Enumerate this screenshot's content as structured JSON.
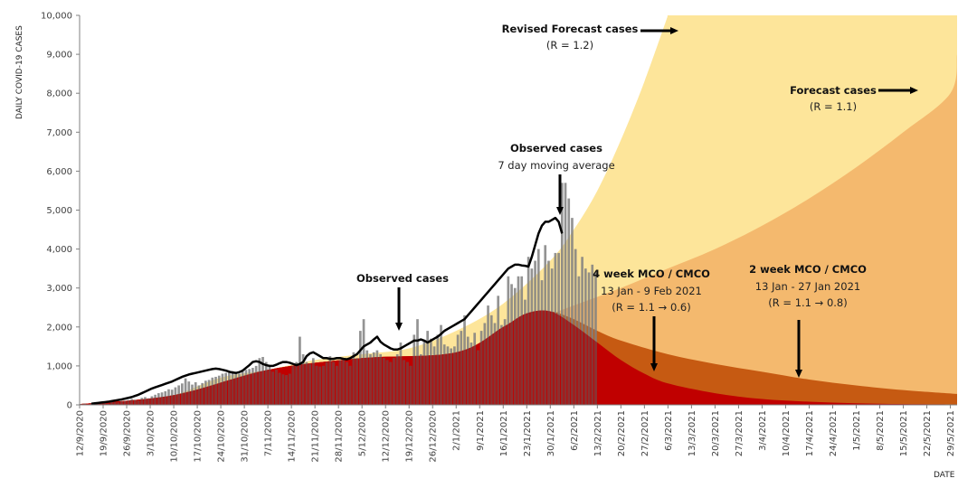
{
  "chart_data": {
    "type": "area",
    "title": "",
    "ylabel": "DAILY COVID-19 CASES",
    "xlabel": "DATE",
    "ylim": [
      0,
      10000
    ],
    "yticks": [
      0,
      1000,
      2000,
      3000,
      4000,
      5000,
      6000,
      7000,
      8000,
      9000,
      10000
    ],
    "ytick_labels": [
      "0",
      "1,000",
      "2,000",
      "3,000",
      "4,000",
      "5,000",
      "6,000",
      "7,000",
      "8,000",
      "9,000",
      "10,000"
    ],
    "x_start": "12/9/2020",
    "x_end": "31/5/2021",
    "xtick_labels": [
      "12/9/2020",
      "19/9/2020",
      "26/9/2020",
      "3/10/2020",
      "10/10/2020",
      "17/10/2020",
      "24/10/2020",
      "31/10/2020",
      "7/11/2020",
      "14/11/2020",
      "21/11/2020",
      "28/11/2020",
      "5/12/2020",
      "12/12/2020",
      "19/12/2020",
      "26/12/2020",
      "2/1/2021",
      "9/1/2021",
      "16/1/2021",
      "23/1/2021",
      "30/1/2021",
      "6/2/2021",
      "13/2/2021",
      "20/2/2021",
      "27/2/2021",
      "6/3/2021",
      "13/3/2021",
      "20/3/2021",
      "27/3/2021",
      "3/4/2021",
      "10/4/2021",
      "17/4/2021",
      "24/4/2021",
      "1/5/2021",
      "8/5/2021",
      "15/5/2021",
      "22/5/2021",
      "29/5/2021"
    ],
    "grid": false,
    "series": [
      {
        "name": "Revised Forecast cases (R = 1.2)",
        "kind": "area",
        "color": "#FDE59A",
        "points": [
          [
            0,
            20
          ],
          [
            14,
            80
          ],
          [
            28,
            250
          ],
          [
            42,
            700
          ],
          [
            56,
            900
          ],
          [
            70,
            1150
          ],
          [
            84,
            1300
          ],
          [
            98,
            1450
          ],
          [
            112,
            1900
          ],
          [
            126,
            2600
          ],
          [
            140,
            3700
          ],
          [
            147,
            4500
          ],
          [
            154,
            5500
          ],
          [
            161,
            6800
          ],
          [
            168,
            8300
          ],
          [
            175,
            10000
          ]
        ]
      },
      {
        "name": "Forecast cases (R = 1.1)",
        "kind": "area",
        "color": "#F4B96E",
        "points": [
          [
            133,
            2100
          ],
          [
            147,
            2550
          ],
          [
            161,
            3000
          ],
          [
            175,
            3500
          ],
          [
            189,
            4000
          ],
          [
            203,
            4600
          ],
          [
            217,
            5300
          ],
          [
            231,
            6100
          ],
          [
            245,
            7000
          ],
          [
            259,
            8000
          ],
          [
            261,
            9000
          ]
        ]
      },
      {
        "name": "2 week MCO / CMCO (R = 1.1 -> 0.8)",
        "kind": "area",
        "color": "#C65A12",
        "points": [
          [
            0,
            20
          ],
          [
            28,
            250
          ],
          [
            56,
            900
          ],
          [
            84,
            1200
          ],
          [
            112,
            1350
          ],
          [
            126,
            2000
          ],
          [
            133,
            2350
          ],
          [
            140,
            2400
          ],
          [
            147,
            2200
          ],
          [
            154,
            1900
          ],
          [
            161,
            1650
          ],
          [
            175,
            1300
          ],
          [
            189,
            1050
          ],
          [
            203,
            850
          ],
          [
            217,
            650
          ],
          [
            231,
            500
          ],
          [
            245,
            380
          ],
          [
            261,
            280
          ]
        ]
      },
      {
        "name": "4 week MCO / CMCO (R = 1.1 -> 0.6)",
        "kind": "area",
        "color": "#C00000",
        "points": [
          [
            0,
            20
          ],
          [
            28,
            250
          ],
          [
            56,
            900
          ],
          [
            84,
            1200
          ],
          [
            112,
            1350
          ],
          [
            126,
            2000
          ],
          [
            133,
            2350
          ],
          [
            140,
            2400
          ],
          [
            147,
            2050
          ],
          [
            154,
            1600
          ],
          [
            161,
            1150
          ],
          [
            168,
            800
          ],
          [
            175,
            550
          ],
          [
            189,
            300
          ],
          [
            203,
            150
          ],
          [
            217,
            80
          ],
          [
            231,
            40
          ],
          [
            245,
            20
          ],
          [
            261,
            10
          ]
        ]
      },
      {
        "name": "Observed cases",
        "kind": "bar",
        "color": "#7F7F7F",
        "start_day": 0,
        "values": [
          20,
          30,
          10,
          40,
          25,
          60,
          50,
          45,
          30,
          80,
          70,
          60,
          90,
          100,
          120,
          150,
          130,
          110,
          180,
          200,
          170,
          220,
          260,
          300,
          320,
          350,
          400,
          390,
          450,
          500,
          550,
          680,
          600,
          520,
          580,
          500,
          560,
          620,
          640,
          700,
          720,
          750,
          800,
          820,
          850,
          870,
          830,
          800,
          860,
          900,
          920,
          950,
          1000,
          1200,
          1230,
          1100,
          980,
          850,
          900,
          820,
          780,
          760,
          800,
          1000,
          1100,
          1750,
          1300,
          1100,
          1050,
          1200,
          1000,
          980,
          1000,
          1100,
          1250,
          1100,
          1000,
          1150,
          1200,
          1100,
          1000,
          1350,
          1200,
          1900,
          2200,
          1400,
          1300,
          1350,
          1400,
          1300,
          1200,
          1150,
          1100,
          1200,
          1300,
          1600,
          1150,
          1100,
          1000,
          1800,
          2200,
          1300,
          1650,
          1900,
          1700,
          1500,
          1800,
          2050,
          1550,
          1500,
          1450,
          1500,
          1800,
          1900,
          2300,
          1750,
          1600,
          1850,
          1400,
          1900,
          2100,
          2550,
          2300,
          2100,
          2800,
          2050,
          2200,
          3300,
          3100,
          3000,
          3300,
          3300,
          2700,
          3800,
          3500,
          3700,
          4000,
          3200,
          4100,
          3700,
          3500,
          3900,
          3900,
          5700,
          5700,
          5300,
          4800,
          4000,
          3300,
          3800,
          3500,
          3400,
          3600,
          3400
        ]
      },
      {
        "name": "Observed cases 7 day moving average",
        "kind": "line",
        "color": "#000000",
        "start_day": 3,
        "values": [
          30,
          40,
          50,
          60,
          70,
          80,
          95,
          110,
          125,
          140,
          160,
          180,
          200,
          230,
          260,
          300,
          340,
          380,
          420,
          450,
          480,
          510,
          540,
          570,
          600,
          640,
          680,
          720,
          750,
          780,
          800,
          820,
          840,
          860,
          880,
          900,
          920,
          930,
          920,
          900,
          880,
          850,
          830,
          820,
          840,
          880,
          950,
          1020,
          1100,
          1120,
          1100,
          1050,
          1020,
          1000,
          1000,
          1030,
          1070,
          1100,
          1100,
          1080,
          1050,
          1020,
          1050,
          1100,
          1250,
          1320,
          1350,
          1300,
          1250,
          1200,
          1200,
          1180,
          1180,
          1200,
          1200,
          1180,
          1170,
          1200,
          1250,
          1300,
          1400,
          1500,
          1550,
          1600,
          1680,
          1750,
          1620,
          1550,
          1500,
          1450,
          1420,
          1420,
          1450,
          1500,
          1550,
          1600,
          1650,
          1650,
          1680,
          1650,
          1600,
          1650,
          1700,
          1750,
          1820,
          1900,
          1950,
          2000,
          2050,
          2100,
          2150,
          2200,
          2300,
          2400,
          2500,
          2600,
          2700,
          2800,
          2900,
          3000,
          3100,
          3200,
          3300,
          3400,
          3500,
          3550,
          3600,
          3600,
          3580,
          3570,
          3550,
          3800,
          4100,
          4400,
          4600,
          4700,
          4700,
          4750,
          4800,
          4700,
          4400
        ]
      }
    ],
    "annotations": {
      "revised_forecast": {
        "title": "Revised Forecast cases",
        "subtitle": "(R = 1.2)"
      },
      "forecast": {
        "title": "Forecast cases",
        "subtitle": "(R = 1.1)"
      },
      "observed_ma": {
        "title": "Observed cases",
        "subtitle": "7 day moving average"
      },
      "observed": {
        "title": "Observed cases"
      },
      "mco4": {
        "title": "4 week MCO / CMCO",
        "line2": "13 Jan - 9 Feb 2021",
        "line3": "(R = 1.1 → 0.6)"
      },
      "mco2": {
        "title": "2 week MCO / CMCO",
        "line2": "13 Jan - 27 Jan 2021",
        "line3": "(R = 1.1 → 0.8)"
      }
    }
  }
}
